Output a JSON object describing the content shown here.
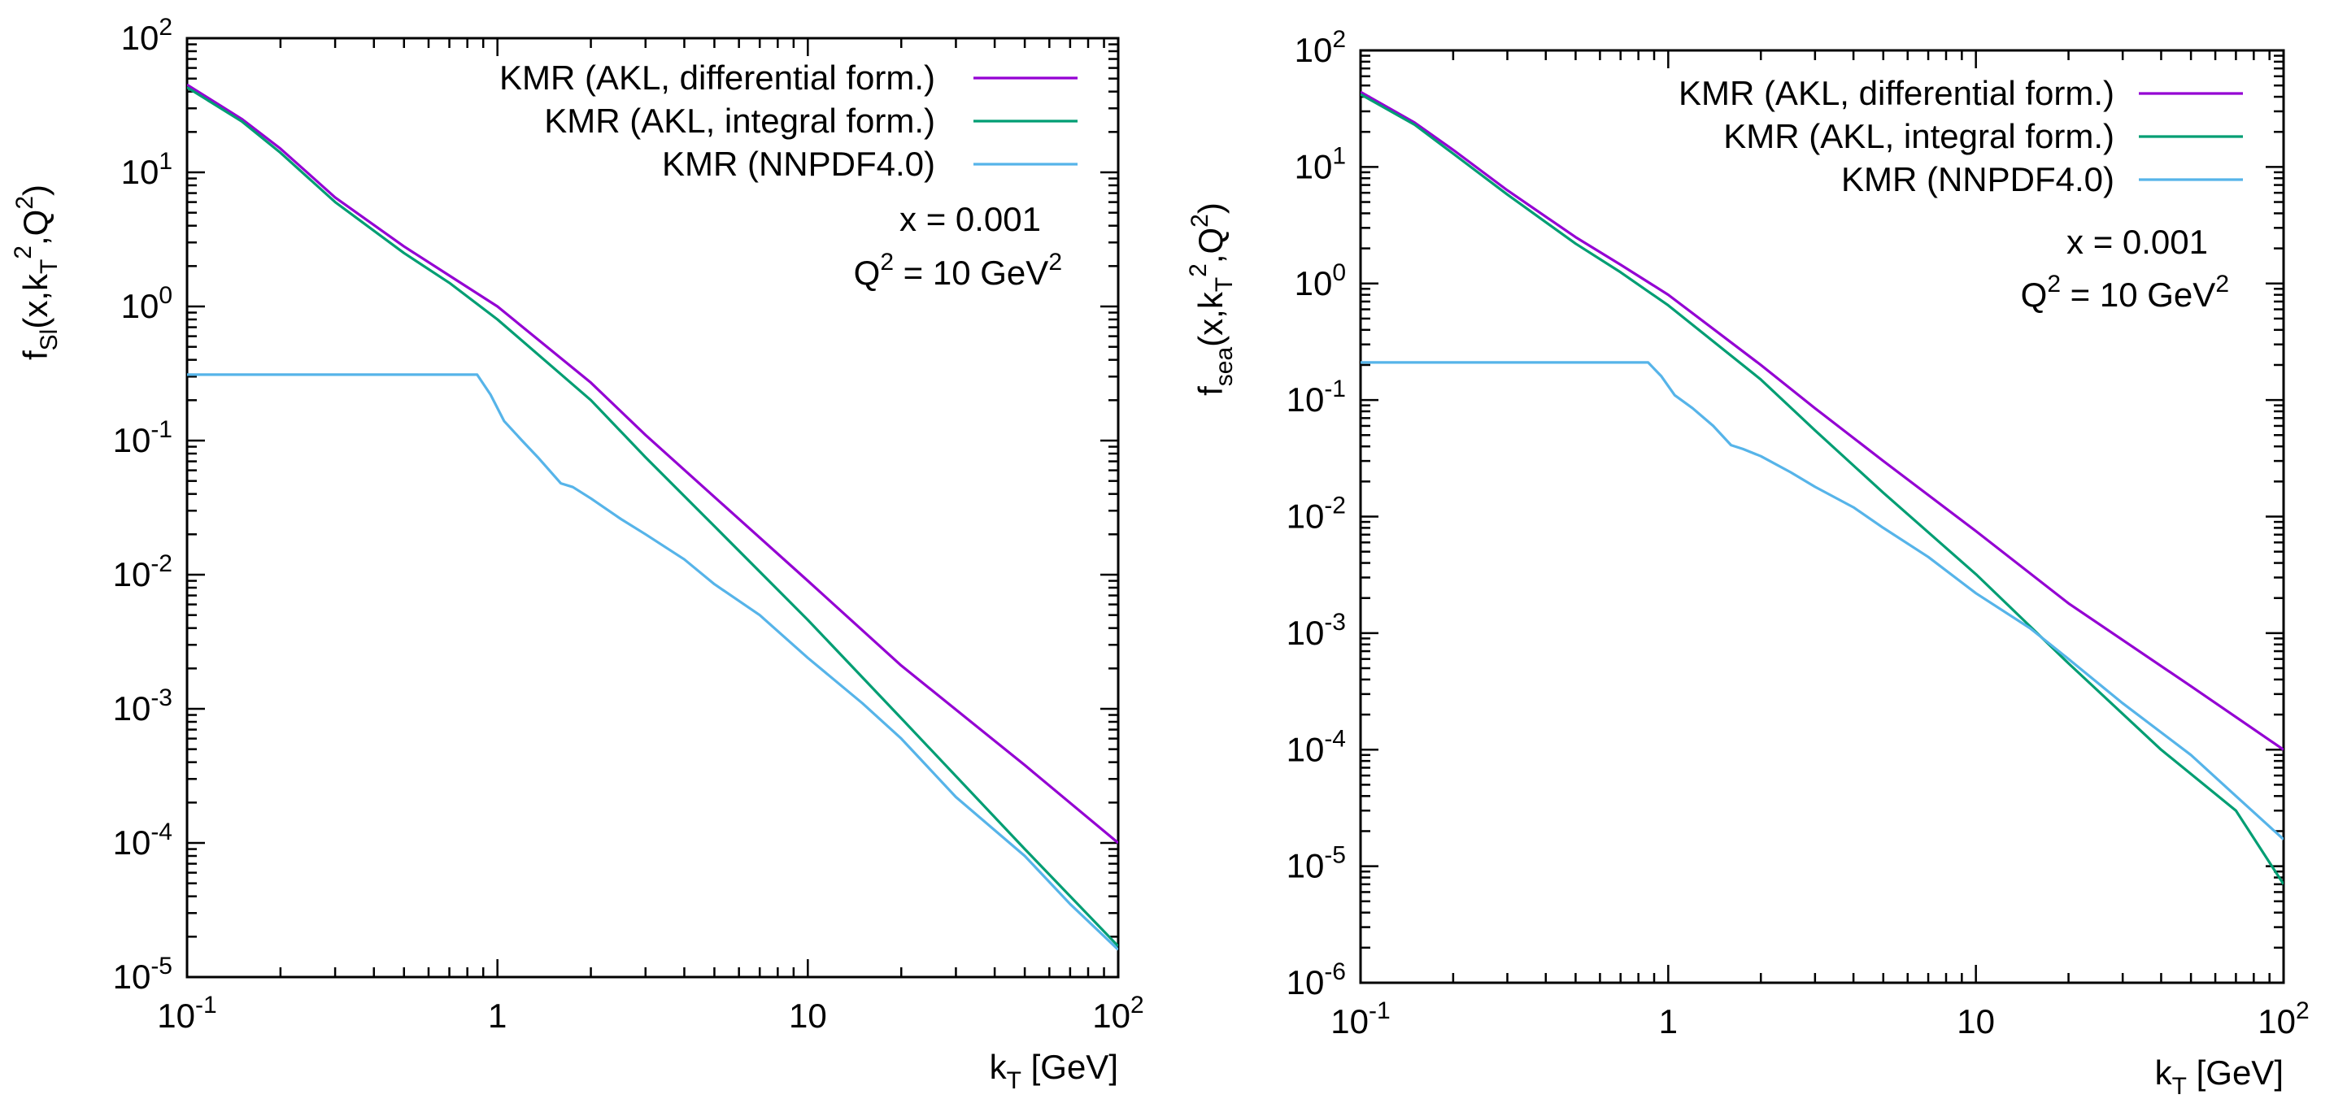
{
  "chart_data": [
    {
      "type": "line",
      "panel": "left",
      "xscale": "log",
      "yscale": "log",
      "xlim": [
        0.1,
        100
      ],
      "ylim": [
        1e-05,
        100
      ],
      "xlabel": {
        "main": "k",
        "sub": "T",
        "rest": " [GeV]"
      },
      "ylabel": {
        "main": "f",
        "sub": "Sl",
        "a": "(x,k",
        "sub2": "T",
        "sup": "2",
        "b": ",Q",
        "sup2": "2",
        "c": ")"
      },
      "xticks": [
        {
          "value": 0.1,
          "base": "10",
          "exp": "-1"
        },
        {
          "value": 1,
          "base": "1",
          "exp": ""
        },
        {
          "value": 10,
          "base": "10",
          "exp": ""
        },
        {
          "value": 100,
          "base": "10",
          "exp": "2"
        }
      ],
      "yticks": [
        {
          "value": 100,
          "base": "10",
          "exp": "2"
        },
        {
          "value": 10,
          "base": "10",
          "exp": "1"
        },
        {
          "value": 1,
          "base": "10",
          "exp": "0"
        },
        {
          "value": 0.1,
          "base": "10",
          "exp": "-1"
        },
        {
          "value": 0.01,
          "base": "10",
          "exp": "-2"
        },
        {
          "value": 0.001,
          "base": "10",
          "exp": "-3"
        },
        {
          "value": 0.0001,
          "base": "10",
          "exp": "-4"
        },
        {
          "value": 1e-05,
          "base": "10",
          "exp": "-5"
        }
      ],
      "annotations": [
        {
          "id": "x",
          "text": "x = 0.001"
        },
        {
          "id": "q2",
          "pre": "Q",
          "sup": "2",
          "mid": " = 10 GeV",
          "sup2": "2"
        }
      ],
      "series": [
        {
          "name": "KMR (AKL, differential form.)",
          "color": "#9400d3",
          "points": [
            [
              0.1,
              45
            ],
            [
              0.15,
              25
            ],
            [
              0.2,
              15
            ],
            [
              0.3,
              6.5
            ],
            [
              0.5,
              2.8
            ],
            [
              0.7,
              1.7
            ],
            [
              1,
              1.0
            ],
            [
              2,
              0.27
            ],
            [
              3,
              0.11
            ],
            [
              5,
              0.038
            ],
            [
              10,
              0.009
            ],
            [
              20,
              0.0021
            ],
            [
              50,
              0.00038
            ],
            [
              100,
              0.0001
            ]
          ]
        },
        {
          "name": "KMR (AKL, integral form.)",
          "color": "#009e73",
          "points": [
            [
              0.1,
              43
            ],
            [
              0.15,
              24
            ],
            [
              0.2,
              14
            ],
            [
              0.3,
              6.0
            ],
            [
              0.5,
              2.5
            ],
            [
              0.7,
              1.5
            ],
            [
              1,
              0.8
            ],
            [
              2,
              0.2
            ],
            [
              3,
              0.075
            ],
            [
              5,
              0.023
            ],
            [
              10,
              0.0046
            ],
            [
              20,
              0.00085
            ],
            [
              50,
              9e-05
            ],
            [
              100,
              1.7e-05
            ]
          ]
        },
        {
          "name": "KMR (NNPDF4.0)",
          "color": "#56b4e9",
          "points": [
            [
              0.1,
              0.31
            ],
            [
              0.86,
              0.31
            ],
            [
              0.95,
              0.22
            ],
            [
              1.05,
              0.14
            ],
            [
              1.2,
              0.1
            ],
            [
              1.35,
              0.075
            ],
            [
              1.6,
              0.048
            ],
            [
              1.75,
              0.045
            ],
            [
              2,
              0.037
            ],
            [
              2.5,
              0.026
            ],
            [
              3,
              0.02
            ],
            [
              4,
              0.013
            ],
            [
              5,
              0.0085
            ],
            [
              7,
              0.005
            ],
            [
              10,
              0.0024
            ],
            [
              15,
              0.0011
            ],
            [
              20,
              0.0006
            ],
            [
              30,
              0.00022
            ],
            [
              50,
              8e-05
            ],
            [
              70,
              3.5e-05
            ],
            [
              100,
              1.6e-05
            ]
          ]
        }
      ]
    },
    {
      "type": "line",
      "panel": "right",
      "xscale": "log",
      "yscale": "log",
      "xlim": [
        0.1,
        100
      ],
      "ylim": [
        1e-06,
        100
      ],
      "xlabel": {
        "main": "k",
        "sub": "T",
        "rest": " [GeV]"
      },
      "ylabel": {
        "main": "f",
        "sub": "sea",
        "a": "(x,k",
        "sub2": "T",
        "sup": "2",
        "b": ",Q",
        "sup2": "2",
        "c": ")"
      },
      "xticks": [
        {
          "value": 0.1,
          "base": "10",
          "exp": "-1"
        },
        {
          "value": 1,
          "base": "1",
          "exp": ""
        },
        {
          "value": 10,
          "base": "10",
          "exp": ""
        },
        {
          "value": 100,
          "base": "10",
          "exp": "2"
        }
      ],
      "yticks": [
        {
          "value": 100,
          "base": "10",
          "exp": "2"
        },
        {
          "value": 10,
          "base": "10",
          "exp": "1"
        },
        {
          "value": 1,
          "base": "10",
          "exp": "0"
        },
        {
          "value": 0.1,
          "base": "10",
          "exp": "-1"
        },
        {
          "value": 0.01,
          "base": "10",
          "exp": "-2"
        },
        {
          "value": 0.001,
          "base": "10",
          "exp": "-3"
        },
        {
          "value": 0.0001,
          "base": "10",
          "exp": "-4"
        },
        {
          "value": 1e-05,
          "base": "10",
          "exp": "-5"
        },
        {
          "value": 1e-06,
          "base": "10",
          "exp": "-6"
        }
      ],
      "annotations": [
        {
          "id": "x",
          "text": "x = 0.001"
        },
        {
          "id": "q2",
          "pre": "Q",
          "sup": "2",
          "mid": " = 10 GeV",
          "sup2": "2"
        }
      ],
      "series": [
        {
          "name": "KMR (AKL, differential form.)",
          "color": "#9400d3",
          "points": [
            [
              0.1,
              44
            ],
            [
              0.15,
              24
            ],
            [
              0.2,
              14
            ],
            [
              0.3,
              6.3
            ],
            [
              0.5,
              2.5
            ],
            [
              0.7,
              1.45
            ],
            [
              1,
              0.8
            ],
            [
              2,
              0.2
            ],
            [
              3,
              0.085
            ],
            [
              5,
              0.03
            ],
            [
              10,
              0.0075
            ],
            [
              20,
              0.0018
            ],
            [
              50,
              0.00035
            ],
            [
              100,
              0.0001
            ]
          ]
        },
        {
          "name": "KMR (AKL, integral form.)",
          "color": "#009e73",
          "points": [
            [
              0.1,
              42
            ],
            [
              0.15,
              23
            ],
            [
              0.2,
              13
            ],
            [
              0.3,
              5.8
            ],
            [
              0.5,
              2.2
            ],
            [
              0.7,
              1.25
            ],
            [
              1,
              0.65
            ],
            [
              2,
              0.15
            ],
            [
              3,
              0.055
            ],
            [
              5,
              0.016
            ],
            [
              10,
              0.0032
            ],
            [
              20,
              0.00055
            ],
            [
              40,
              0.0001
            ],
            [
              70,
              3e-05
            ],
            [
              100,
              7e-06
            ]
          ]
        },
        {
          "name": "KMR (NNPDF4.0)",
          "color": "#56b4e9",
          "points": [
            [
              0.1,
              0.21
            ],
            [
              0.86,
              0.21
            ],
            [
              0.95,
              0.16
            ],
            [
              1.05,
              0.11
            ],
            [
              1.2,
              0.085
            ],
            [
              1.4,
              0.06
            ],
            [
              1.6,
              0.041
            ],
            [
              1.75,
              0.038
            ],
            [
              2,
              0.033
            ],
            [
              2.5,
              0.024
            ],
            [
              3,
              0.018
            ],
            [
              4,
              0.012
            ],
            [
              5,
              0.008
            ],
            [
              7,
              0.0045
            ],
            [
              10,
              0.0022
            ],
            [
              15,
              0.0011
            ],
            [
              20,
              0.0006
            ],
            [
              30,
              0.00025
            ],
            [
              50,
              9e-05
            ],
            [
              70,
              4e-05
            ],
            [
              100,
              1.7e-05
            ]
          ]
        }
      ]
    }
  ]
}
